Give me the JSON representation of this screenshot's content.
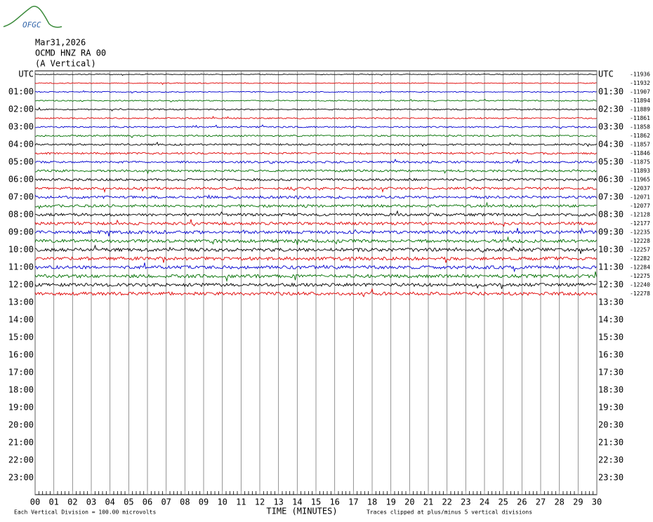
{
  "logo": "OFGC",
  "header": {
    "date": "Mar31,2026",
    "station": "OCMD HNZ RA 00",
    "component": "(A Vertical)"
  },
  "left_labels": [
    "UTC",
    "01:00",
    "02:00",
    "03:00",
    "04:00",
    "05:00",
    "06:00",
    "07:00",
    "08:00",
    "09:00",
    "10:00",
    "11:00",
    "12:00",
    "13:00",
    "14:00",
    "15:00",
    "16:00",
    "17:00",
    "18:00",
    "19:00",
    "20:00",
    "21:00",
    "22:00",
    "23:00"
  ],
  "right_labels": [
    "UTC",
    "01:30",
    "02:30",
    "03:30",
    "04:30",
    "05:30",
    "06:30",
    "07:30",
    "08:30",
    "09:30",
    "10:30",
    "11:30",
    "12:30",
    "13:30",
    "14:30",
    "15:30",
    "16:30",
    "17:30",
    "18:30",
    "19:30",
    "20:30",
    "21:30",
    "22:30",
    "23:30"
  ],
  "offsets": [
    -11936,
    -11932,
    -11907,
    -11894,
    -11889,
    -11861,
    -11858,
    -11862,
    -11857,
    -11846,
    -11875,
    -11893,
    -11965,
    -12037,
    -12071,
    -12077,
    -12128,
    -12177,
    -12235,
    -12228,
    -12257,
    -12282,
    -12284,
    -12275,
    -12240,
    -12278
  ],
  "x_ticks": [
    "00",
    "01",
    "02",
    "03",
    "04",
    "05",
    "06",
    "07",
    "08",
    "09",
    "10",
    "11",
    "12",
    "13",
    "14",
    "15",
    "16",
    "17",
    "18",
    "19",
    "20",
    "21",
    "22",
    "23",
    "24",
    "25",
    "26",
    "27",
    "28",
    "29",
    "30"
  ],
  "x_label": "TIME (MINUTES)",
  "footer": {
    "division": "Each Vertical Division =  100.00 microvolts",
    "clip": "Traces clipped at plus/minus 5 vertical divisions"
  }
}
